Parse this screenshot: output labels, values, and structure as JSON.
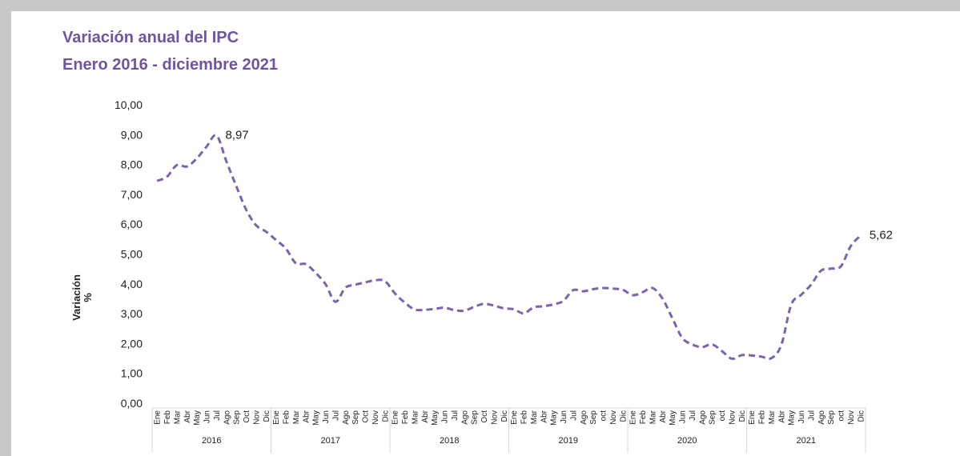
{
  "chart_data": {
    "type": "line",
    "title": "Variación anual del IPC",
    "subtitle": "Enero 2016 - diciembre 2021",
    "ylabel_line1": "Variación",
    "ylabel_line2": "%",
    "xlabel": "",
    "ylim": [
      0,
      10
    ],
    "yticks": [
      "0,00",
      "1,00",
      "2,00",
      "3,00",
      "4,00",
      "5,00",
      "6,00",
      "7,00",
      "8,00",
      "9,00",
      "10,00"
    ],
    "grid": false,
    "line_color": "#7b63ad",
    "line_style": "dashed",
    "years": [
      {
        "label": "2016",
        "months": [
          "Ene",
          "Feb",
          "Mar",
          "Abr",
          "May",
          "Jun",
          "Jul",
          "Ago",
          "Sep",
          "Oct",
          "Nov",
          "Dic"
        ]
      },
      {
        "label": "2017",
        "months": [
          "Ene",
          "Feb",
          "Mar",
          "Abr",
          "May",
          "Jun",
          "Jul",
          "Ago",
          "Sep",
          "Oct",
          "Nov",
          "Dic"
        ]
      },
      {
        "label": "2018",
        "months": [
          "Ene",
          "Feb",
          "Mar",
          "Abr",
          "May",
          "Jun",
          "Jul",
          "Ago",
          "Sep",
          "Oct",
          "Nov",
          "Dic"
        ]
      },
      {
        "label": "2019",
        "months": [
          "Ene",
          "Feb",
          "Mar",
          "Abr",
          "May",
          "Jun",
          "Jul",
          "Ago",
          "Sep",
          "oct",
          "Nov",
          "Dic"
        ]
      },
      {
        "label": "2020",
        "months": [
          "Ene",
          "Feb",
          "Mar",
          "Abr",
          "May",
          "Jun",
          "Jul",
          "Ago",
          "Sep",
          "oct",
          "Nov",
          "Dic"
        ]
      },
      {
        "label": "2021",
        "months": [
          "Ene",
          "Feb",
          "Mar",
          "Abr",
          "May",
          "Jun",
          "Jul",
          "Ago",
          "Sep",
          "oct",
          "Nov",
          "Dic"
        ]
      }
    ],
    "series": [
      {
        "values": [
          7.45,
          7.59,
          7.98,
          7.93,
          8.2,
          8.6,
          8.97,
          8.1,
          7.27,
          6.48,
          5.96,
          5.75,
          5.47,
          5.18,
          4.69,
          4.66,
          4.37,
          3.99,
          3.4,
          3.87,
          3.97,
          4.05,
          4.12,
          4.09,
          3.68,
          3.37,
          3.14,
          3.13,
          3.16,
          3.2,
          3.12,
          3.1,
          3.23,
          3.33,
          3.27,
          3.18,
          3.15,
          3.01,
          3.21,
          3.25,
          3.31,
          3.43,
          3.79,
          3.75,
          3.82,
          3.86,
          3.84,
          3.8,
          3.62,
          3.72,
          3.86,
          3.51,
          2.85,
          2.19,
          1.97,
          1.88,
          1.97,
          1.75,
          1.49,
          1.61,
          1.6,
          1.56,
          1.51,
          1.95,
          3.3,
          3.63,
          3.97,
          4.44,
          4.51,
          4.58,
          5.26,
          5.62
        ]
      }
    ],
    "annotations": [
      {
        "index": 6,
        "text": "8,97"
      },
      {
        "index": 71,
        "text": "5,62"
      }
    ]
  }
}
